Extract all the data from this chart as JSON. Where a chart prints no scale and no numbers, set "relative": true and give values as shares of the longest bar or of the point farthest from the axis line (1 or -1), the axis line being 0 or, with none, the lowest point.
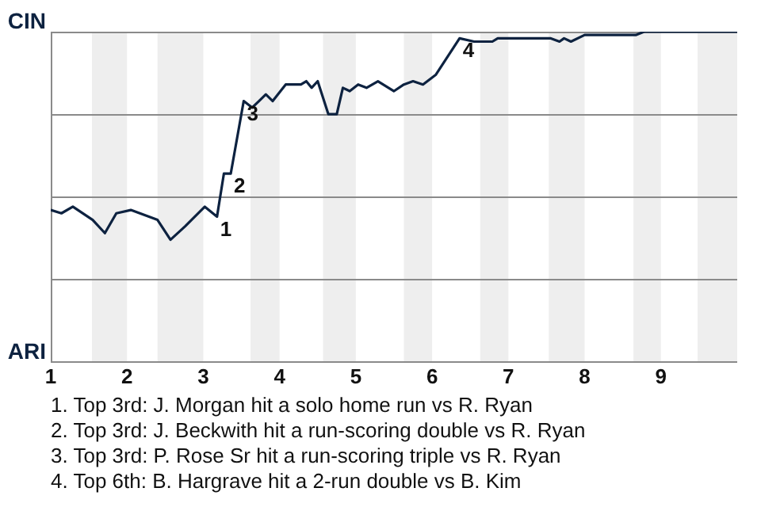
{
  "chart_data": {
    "type": "line",
    "relative": true,
    "x": [
      1.0,
      1.14,
      1.29,
      1.55,
      1.71,
      1.86,
      2.05,
      2.4,
      2.57,
      2.76,
      3.02,
      3.18,
      3.27,
      3.36,
      3.53,
      3.64,
      3.73,
      3.82,
      3.91,
      4.08,
      4.28,
      4.35,
      4.42,
      4.5,
      4.64,
      4.75,
      4.83,
      4.92,
      5.03,
      5.14,
      5.29,
      5.5,
      5.63,
      5.75,
      5.88,
      6.05,
      6.36,
      6.55,
      6.67,
      6.71,
      6.79,
      6.86,
      7.0,
      7.55,
      7.67,
      7.73,
      7.82,
      8.0,
      8.56,
      8.67,
      8.78,
      9.71,
      9.83,
      10.0
    ],
    "series": [
      {
        "color": "#0d2240",
        "values": [
          0.46,
          0.45,
          0.47,
          0.43,
          0.39,
          0.45,
          0.46,
          0.43,
          0.37,
          0.41,
          0.47,
          0.44,
          0.57,
          0.57,
          0.79,
          0.77,
          0.79,
          0.81,
          0.79,
          0.84,
          0.84,
          0.85,
          0.83,
          0.85,
          0.75,
          0.75,
          0.83,
          0.82,
          0.84,
          0.83,
          0.85,
          0.82,
          0.84,
          0.85,
          0.84,
          0.87,
          0.98,
          0.97,
          0.97,
          0.97,
          0.97,
          0.98,
          0.98,
          0.98,
          0.97,
          0.98,
          0.97,
          0.99,
          0.99,
          0.99,
          1.0,
          1.0,
          1.0,
          1.0
        ]
      }
    ],
    "xlim": [
      1,
      10
    ],
    "xticks": [
      1,
      2,
      3,
      4,
      5,
      6,
      7,
      8,
      9
    ],
    "marker": "none",
    "ref_lines": [
      {
        "axis": "y",
        "value": 0,
        "label": "ARI",
        "color": "#8a8a8a"
      },
      {
        "axis": "y",
        "value": 0.25,
        "color": "#8a8a8a"
      },
      {
        "axis": "y",
        "value": 0.5,
        "color": "#8a8a8a"
      },
      {
        "axis": "y",
        "value": 0.75,
        "color": "#8a8a8a"
      },
      {
        "axis": "y",
        "value": 1,
        "label": "CIN",
        "color": "#8a8a8a"
      }
    ],
    "bands": [
      {
        "axis": "x",
        "from": 1.54,
        "to": 2,
        "color": "#eeeeee"
      },
      {
        "axis": "x",
        "from": 2.4,
        "to": 3,
        "color": "#eeeeee"
      },
      {
        "axis": "x",
        "from": 3.62,
        "to": 4,
        "color": "#eeeeee"
      },
      {
        "axis": "x",
        "from": 4.57,
        "to": 5,
        "color": "#eeeeee"
      },
      {
        "axis": "x",
        "from": 5.63,
        "to": 6,
        "color": "#eeeeee"
      },
      {
        "axis": "x",
        "from": 6.63,
        "to": 7,
        "color": "#eeeeee"
      },
      {
        "axis": "x",
        "from": 7.53,
        "to": 8,
        "color": "#eeeeee"
      },
      {
        "axis": "x",
        "from": 8.64,
        "to": 9,
        "color": "#eeeeee"
      },
      {
        "axis": "x",
        "from": 9.48,
        "to": 10,
        "color": "#eeeeee"
      }
    ],
    "annotations": [
      {
        "text": "1",
        "x": 3.18,
        "y": 0.44
      },
      {
        "text": "2",
        "x": 3.36,
        "y": 0.57
      },
      {
        "text": "3",
        "x": 3.53,
        "y": 0.79
      },
      {
        "text": "4",
        "x": 6.36,
        "y": 0.98
      },
      "1. Top 3rd: J. Morgan hit a solo home run vs R. Ryan",
      "2. Top 3rd: J. Beckwith hit a run-scoring double vs R. Ryan",
      "3. Top 3rd: P. Rose Sr hit a run-scoring triple vs R. Ryan",
      "4. Top 6th: B. Hargrave hit a 2-run double vs B. Kim"
    ]
  }
}
